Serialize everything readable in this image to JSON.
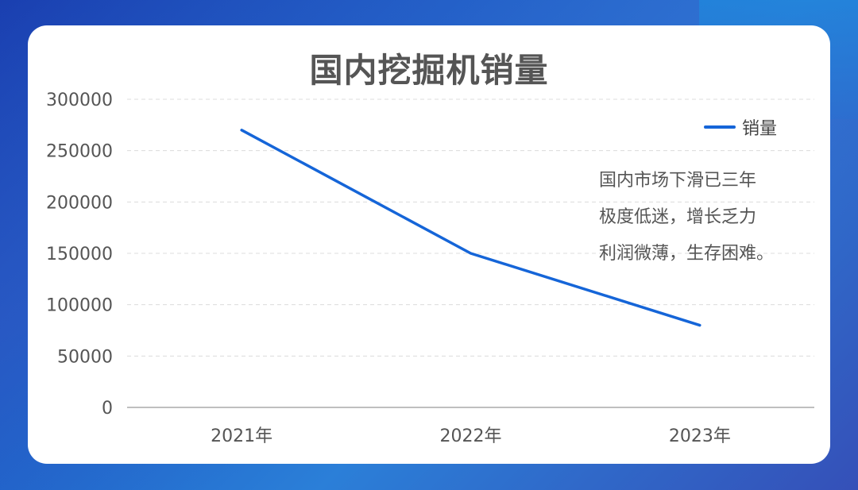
{
  "chart_data": {
    "type": "line",
    "title": "国内挖掘机销量",
    "categories": [
      "2021年",
      "2022年",
      "2023年"
    ],
    "series": [
      {
        "name": "销量",
        "values": [
          270000,
          150000,
          80000
        ]
      }
    ],
    "yticks": [
      "0",
      "50000",
      "100000",
      "150000",
      "200000",
      "250000",
      "300000"
    ],
    "ylim": [
      0,
      300000
    ],
    "grid": true,
    "legend": "top-right",
    "annotation": [
      "国内市场下滑已三年",
      "极度低迷，增长乏力",
      "利润微薄，生存困难。"
    ]
  },
  "colors": {
    "series": "#1565d8",
    "card": "#ffffff"
  }
}
